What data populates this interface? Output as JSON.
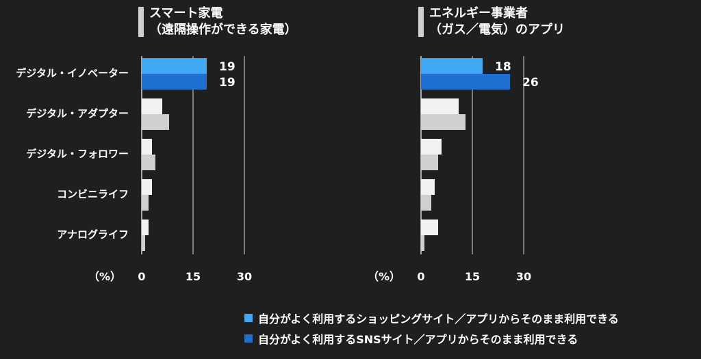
{
  "chart_data": [
    {
      "type": "bar",
      "title": [
        "スマート家電",
        "（遠隔操作ができる家電）"
      ],
      "categories": [
        "デジタル・イノベーター",
        "デジタル・アダプター",
        "デジタル・フォロワー",
        "コンビニライフ",
        "アナログライフ"
      ],
      "series": [
        {
          "name": "自分がよく利用するショッピングサイト／アプリからそのまま利用できる",
          "values": [
            19,
            6,
            3,
            3,
            2
          ]
        },
        {
          "name": "自分がよく利用するSNSサイト／アプリからそのまま利用できる",
          "values": [
            19,
            8,
            4,
            2,
            1
          ]
        }
      ],
      "data_labels_first_category": [
        19,
        19
      ],
      "unit_label": "（%）",
      "xlim": [
        0,
        38
      ],
      "xticks": [
        0,
        15,
        30
      ]
    },
    {
      "type": "bar",
      "title": [
        "エネルギー事業者",
        "（ガス／電気）のアプリ"
      ],
      "categories": [
        "デジタル・イノベーター",
        "デジタル・アダプター",
        "デジタル・フォロワー",
        "コンビニライフ",
        "アナログライフ"
      ],
      "series": [
        {
          "name": "自分がよく利用するショッピングサイト／アプリからそのまま利用できる",
          "values": [
            18,
            11,
            6,
            4,
            5
          ]
        },
        {
          "name": "自分がよく利用するSNSサイト／アプリからそのまま利用できる",
          "values": [
            26,
            13,
            5,
            3,
            1
          ]
        }
      ],
      "data_labels_first_category": [
        18,
        26
      ],
      "unit_label": "（%）",
      "xlim": [
        0,
        38
      ],
      "xticks": [
        0,
        15,
        30
      ]
    }
  ],
  "legend": [
    {
      "label": "自分がよく利用するショッピングサイト／アプリからそのまま利用できる",
      "color": "#3fa9f5"
    },
    {
      "label": "自分がよく利用するSNSサイト／アプリからそのまま利用できる",
      "color": "#1e6fd0"
    }
  ],
  "colors": {
    "highlight_series1": "#3fa9f5",
    "highlight_series2": "#1e6fd0",
    "other_series1": "#f2f2f2",
    "other_series2": "#cfcfcf",
    "axis": "#d9d9d9",
    "background": "#1f1f1f"
  }
}
